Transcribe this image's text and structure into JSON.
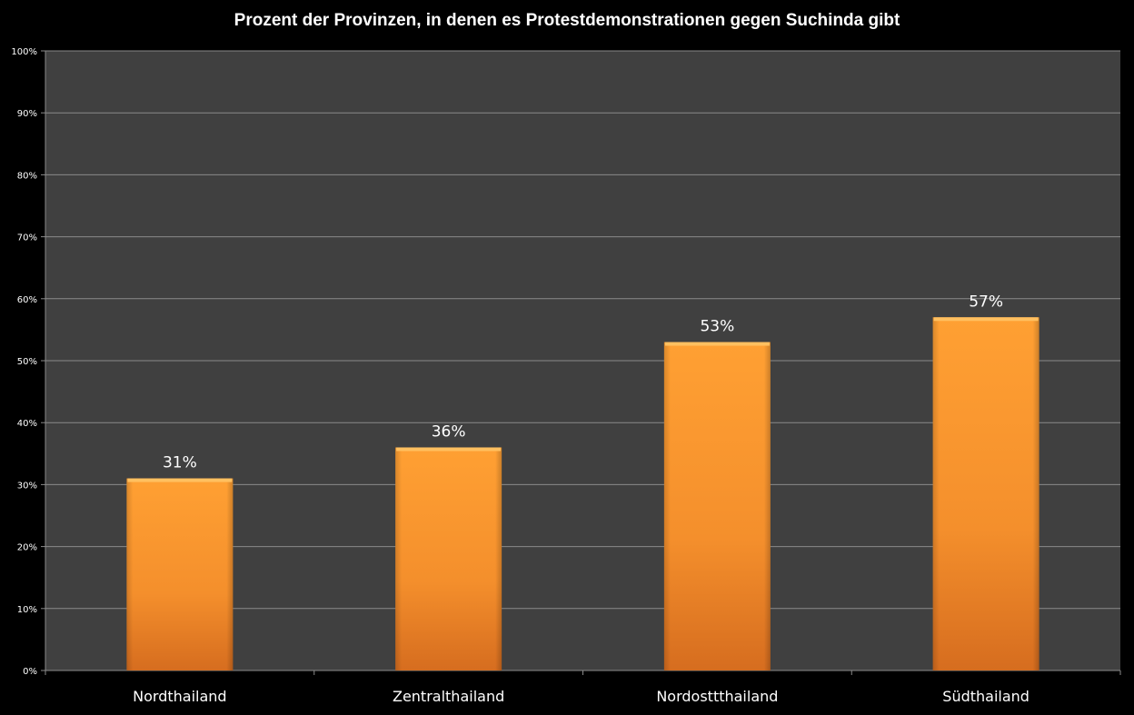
{
  "chart_data": {
    "type": "bar",
    "title": "Prozent der Provinzen, in denen es Protestdemonstrationen gegen Suchinda gibt",
    "categories": [
      "Nordthailand",
      "Zentralthailand",
      "Nordosttthailand",
      "Südthailand"
    ],
    "values": [
      31,
      36,
      53,
      57
    ],
    "data_labels": [
      "31%",
      "36%",
      "53%",
      "57%"
    ],
    "xlabel": "",
    "ylabel": "",
    "ylim": [
      0,
      100
    ],
    "yticks": [
      "0%",
      "10%",
      "20%",
      "30%",
      "40%",
      "50%",
      "60%",
      "70%",
      "80%",
      "90%",
      "100%"
    ],
    "grid": true,
    "legend": "none",
    "colors": {
      "bar": "#f7962e",
      "plot_bg": "#404040",
      "page_bg": "#000000",
      "grid": "#8a8a8a"
    }
  }
}
